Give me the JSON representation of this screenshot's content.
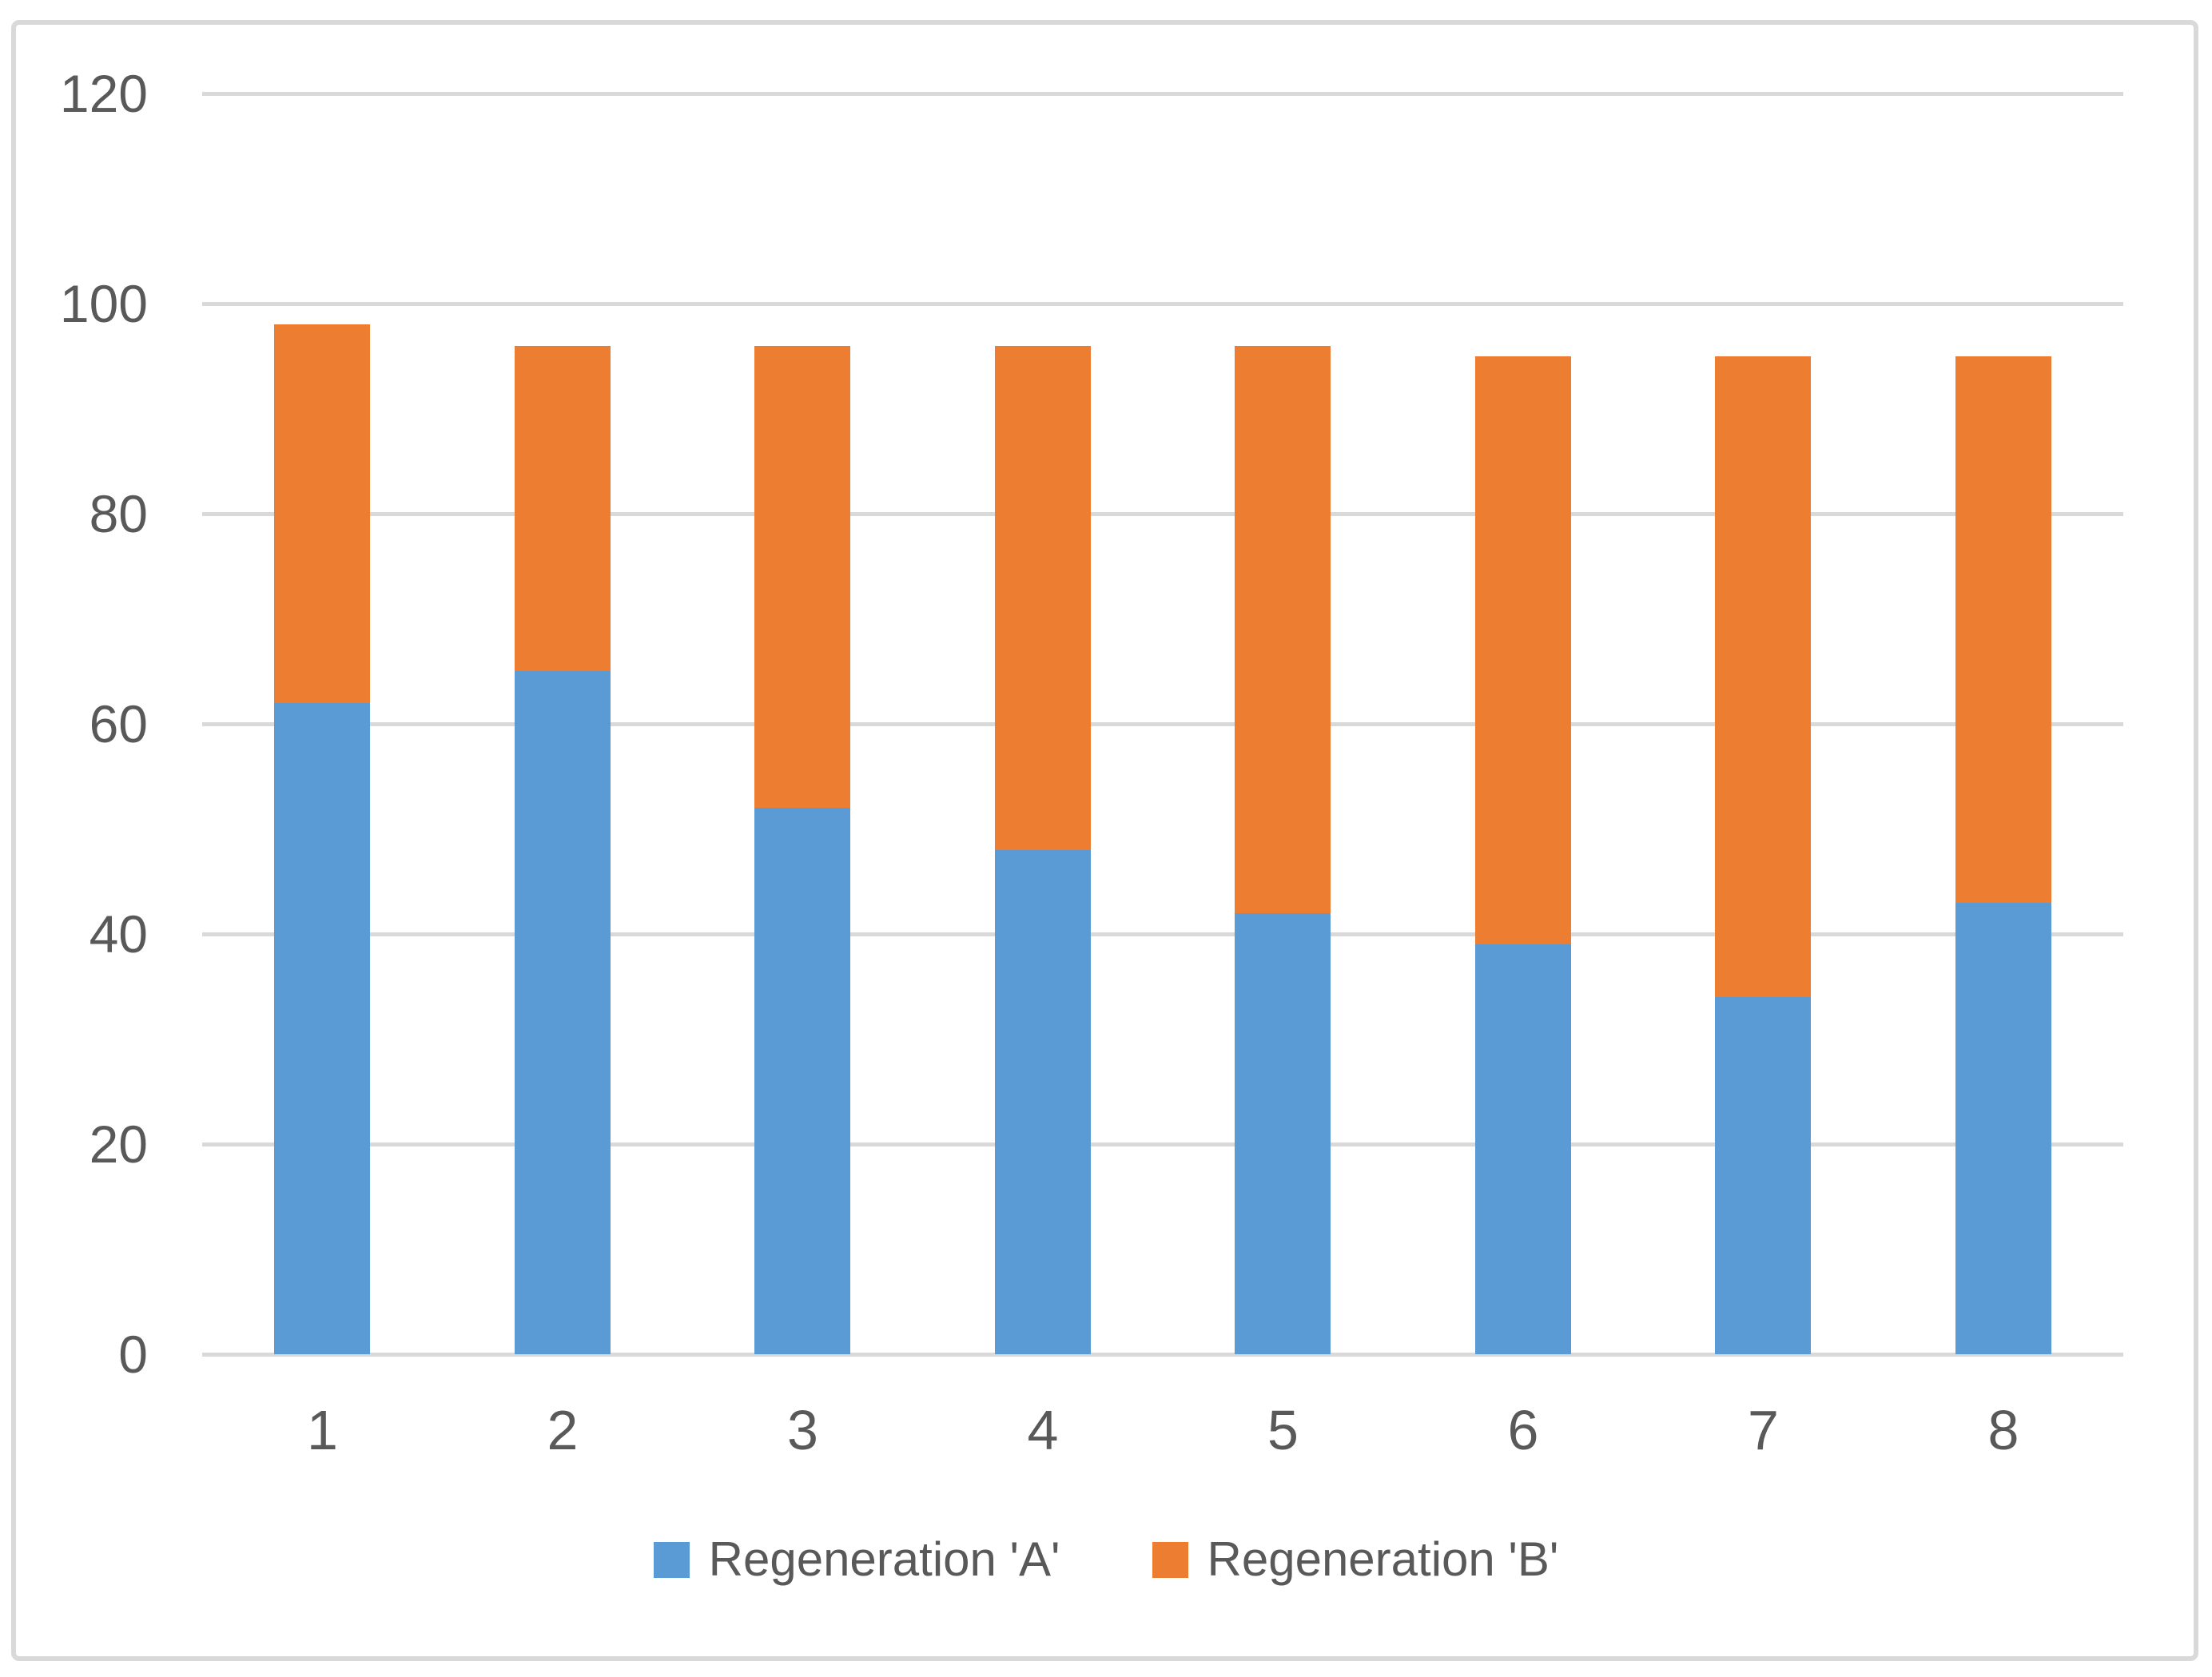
{
  "chart_data": {
    "type": "bar",
    "stacked": true,
    "title": "",
    "categories": [
      "1",
      "2",
      "3",
      "4",
      "5",
      "6",
      "7",
      "8"
    ],
    "series": [
      {
        "name": "Regeneration 'A'",
        "color": "#5B9BD5",
        "values": [
          62,
          65,
          52,
          48,
          42,
          39,
          34,
          43
        ]
      },
      {
        "name": "Regeneration 'B'",
        "color": "#ED7D31",
        "values": [
          36,
          31,
          44,
          48,
          54,
          56,
          61,
          52
        ]
      }
    ],
    "stack_totals": [
      98,
      96,
      96,
      96,
      96,
      95,
      95,
      95
    ],
    "xlabel": "",
    "ylabel": "",
    "ylim": [
      0,
      120
    ],
    "yticks": [
      0,
      20,
      40,
      60,
      80,
      100,
      120
    ],
    "grid": "horizontal",
    "legend_position": "bottom",
    "colors": {
      "gridline": "#D9D9D9",
      "axis_text": "#595959",
      "frame_border": "#D9D9D9",
      "background": "#FFFFFF"
    }
  }
}
